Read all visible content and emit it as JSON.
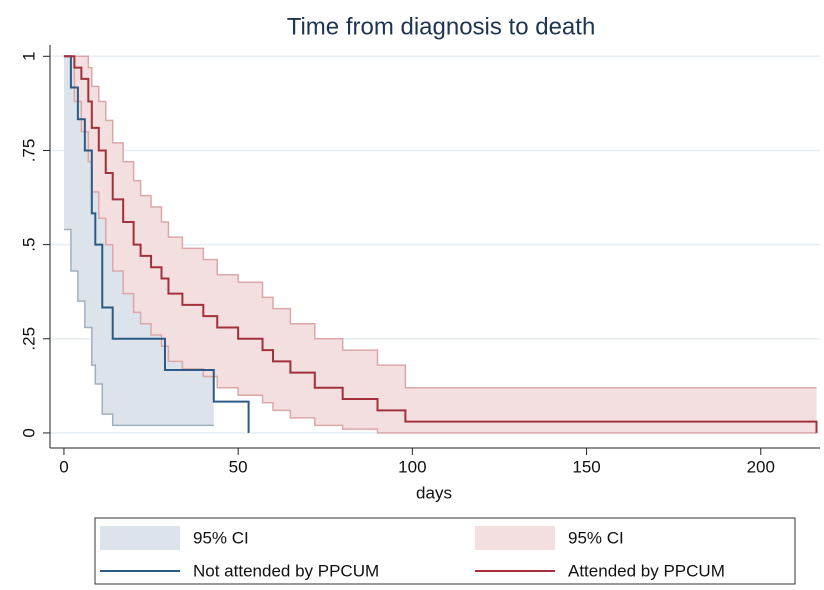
{
  "chart_data": {
    "type": "survival",
    "title": "Time from diagnosis to death",
    "x_label": "days",
    "xlim": [
      -4,
      217
    ],
    "ylim": [
      -0.04,
      1.03
    ],
    "xticks": [
      0,
      50,
      100,
      150,
      200
    ],
    "yticks": [
      0,
      {
        "value": 0.25,
        "label": ".25"
      },
      {
        "value": 0.5,
        "label": ".5"
      },
      {
        "value": 0.75,
        "label": ".75"
      },
      1
    ],
    "grid": true,
    "series": [
      {
        "name": "Not attended by PPCUM",
        "ci_label": "95% CI",
        "color": "#2b5a84",
        "ci_color": "#dde3ea",
        "ci_edge": "#9fb0c2",
        "x": [
          0,
          2,
          4,
          6,
          8,
          9,
          11,
          14,
          29,
          43,
          53
        ],
        "values": [
          1,
          0.917,
          0.833,
          0.75,
          0.583,
          0.5,
          0.333,
          0.25,
          0.167,
          0.083,
          0
        ],
        "lower": [
          0.54,
          0.43,
          0.35,
          0.28,
          0.18,
          0.13,
          0.05,
          0.02,
          0.02,
          null,
          null
        ],
        "upper": [
          1,
          1,
          0.99,
          0.95,
          0.85,
          0.79,
          0.64,
          0.55,
          0.41,
          null,
          null
        ]
      },
      {
        "name": "Attended by PPCUM",
        "ci_label": "95% CI",
        "color": "#a3303b",
        "ci_color": "#f3dfdf",
        "ci_edge": "#dca7a9",
        "x": [
          0,
          3,
          5,
          7,
          8,
          10,
          12,
          14,
          17,
          20,
          22,
          25,
          28,
          30,
          34,
          40,
          44,
          50,
          57,
          60,
          65,
          72,
          80,
          90,
          98,
          216
        ],
        "values": [
          1,
          0.97,
          0.94,
          0.88,
          0.81,
          0.75,
          0.69,
          0.62,
          0.56,
          0.5,
          0.47,
          0.44,
          0.41,
          0.37,
          0.34,
          0.31,
          0.28,
          0.25,
          0.22,
          0.19,
          0.16,
          0.12,
          0.09,
          0.06,
          0.03,
          0
        ],
        "lower": [
          1,
          0.88,
          0.8,
          0.72,
          0.64,
          0.57,
          0.5,
          0.43,
          0.37,
          0.32,
          0.29,
          0.26,
          0.23,
          0.19,
          0.17,
          0.15,
          0.12,
          0.1,
          0.08,
          0.06,
          0.04,
          0.02,
          0.01,
          0,
          0,
          null
        ],
        "upper": [
          1,
          1,
          1,
          0.97,
          0.92,
          0.88,
          0.83,
          0.77,
          0.72,
          0.67,
          0.63,
          0.6,
          0.56,
          0.52,
          0.49,
          0.46,
          0.42,
          0.4,
          0.36,
          0.33,
          0.29,
          0.25,
          0.22,
          0.18,
          0.12,
          null
        ]
      }
    ]
  }
}
